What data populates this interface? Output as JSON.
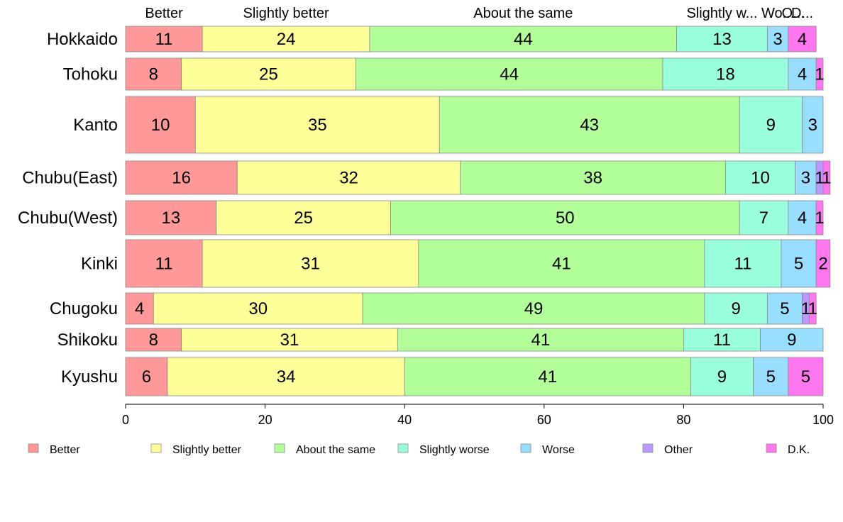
{
  "chart_data": {
    "type": "bar",
    "orientation": "horizontal",
    "stacked": true,
    "categories": [
      "Hokkaido",
      "Tohoku",
      "Kanto",
      "Chubu(East)",
      "Chubu(West)",
      "Kinki",
      "Chugoku",
      "Shikoku",
      "Kyushu"
    ],
    "series": [
      {
        "name": "Better",
        "color": "#FF9999",
        "values": [
          11,
          8,
          10,
          16,
          13,
          11,
          4,
          8,
          6
        ]
      },
      {
        "name": "Slightly better",
        "color": "#FFFF99",
        "values": [
          24,
          25,
          35,
          32,
          25,
          31,
          30,
          31,
          34
        ]
      },
      {
        "name": "About the same",
        "color": "#B3FF99",
        "values": [
          44,
          44,
          43,
          38,
          50,
          41,
          49,
          41,
          41
        ]
      },
      {
        "name": "Slightly worse",
        "color": "#99FFDD",
        "values": [
          13,
          18,
          9,
          10,
          7,
          11,
          9,
          11,
          9
        ]
      },
      {
        "name": "Worse",
        "color": "#99DDFF",
        "values": [
          3,
          4,
          3,
          3,
          4,
          5,
          5,
          9,
          5
        ]
      },
      {
        "name": "Other",
        "color": "#BB99FF",
        "values": [
          0,
          0,
          0,
          1,
          0,
          0,
          1,
          0,
          0
        ]
      },
      {
        "name": "D.K.",
        "color": "#FF77EE",
        "values": [
          4,
          1,
          0,
          1,
          1,
          2,
          1,
          0,
          5
        ]
      }
    ],
    "top_labels": [
      "Better",
      "Slightly better",
      "About the same",
      "Slightly w...",
      "Wo...",
      "O...",
      "D..."
    ],
    "xlim": [
      0,
      100
    ],
    "x_ticks": [
      0,
      20,
      40,
      60,
      80,
      100
    ],
    "legend_position": "bottom"
  }
}
